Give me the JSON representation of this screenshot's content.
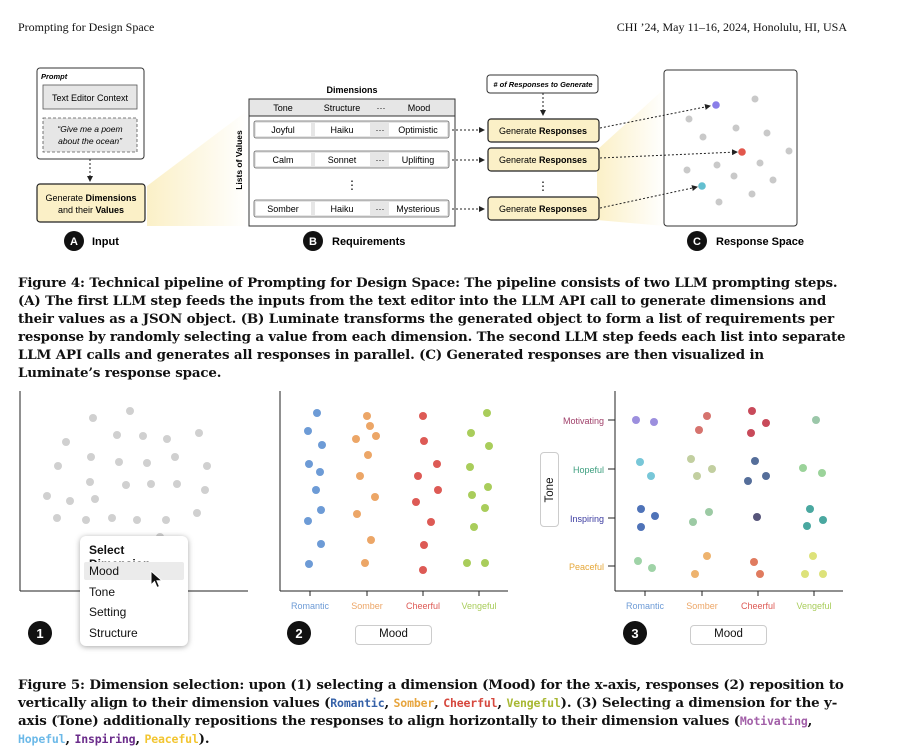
{
  "header": {
    "left": "Prompting for Design Space",
    "right": "CHI ’24, May 11–16, 2024, Honolulu, HI, USA"
  },
  "fig4": {
    "prompt_label": "Prompt",
    "text_editor": "Text Editor Context",
    "quote_line1": "“Give me a poem",
    "quote_line2": "about the ocean”",
    "gen_dim_pre": "Generate ",
    "gen_dim_bold": "Dimensions",
    "gen_dim_line2_pre": "and their ",
    "gen_dim_line2_bold": "Values",
    "dimensions_title": "Dimensions",
    "lists_of_values": "Lists of Values",
    "columns": [
      "Tone",
      "Structure",
      "···",
      "Mood"
    ],
    "rows": [
      [
        "Joyful",
        "Haiku",
        "···",
        "Optimistic"
      ],
      [
        "Calm",
        "Sonnet",
        "···",
        "Uplifting"
      ],
      [
        "Somber",
        "Haiku",
        "···",
        "Mysterious"
      ]
    ],
    "ellipsis": "⋮",
    "num_responses": "# of Responses to Generate",
    "gen_resp_pre": "Generate ",
    "gen_resp_bold": "Responses",
    "label_a": "A",
    "label_a_text": "Input",
    "label_b": "B",
    "label_b_text": "Requirements",
    "label_c": "C",
    "label_c_text": "Response Space",
    "colors": {
      "cream": "#fbf0c7",
      "purple": "#8a7ee8",
      "red": "#e2574c",
      "cyan": "#63bfd0",
      "grey": "#c9c9c9"
    }
  },
  "fig4_caption": "Figure 4: Technical pipeline of Prompting for Design Space: The pipeline consists of two LLM prompting steps. (A) The first LLM step feeds the inputs from the text editor into the LLM API call to generate dimensions and their values as a JSON object. (B) Luminate transforms the generated object to form a list of requirements per response by randomly selecting a value from each dimension. The second LLM step feeds each list into separate LLM API calls and generates all responses in parallel. (C) Generated responses are then visualized in Luminate’s response space.",
  "fig5": {
    "menu": {
      "title": "Select Dimension",
      "items": [
        "Mood",
        "Tone",
        "Setting",
        "Structure"
      ],
      "selected": "Mood"
    },
    "x_values": [
      "Romantic",
      "Somber",
      "Cheerful",
      "Vengeful"
    ],
    "y_values": [
      "Motivating",
      "Hopeful",
      "Inspiring",
      "Peaceful"
    ],
    "x_axis_button": "Mood",
    "y_axis_button": "Tone",
    "step_labels": [
      "1",
      "2",
      "3"
    ],
    "colors": {
      "Romantic": "#6d9bd6",
      "Somber": "#eca667",
      "Cheerful": "#dd5a55",
      "Vengeful": "#a9cd5b",
      "Motivating": "#a0406a",
      "Hopeful": "#3c9e7e",
      "Inspiring": "#3a3aa0",
      "Peaceful": "#e6a83a",
      "grey": "#cfcfcf"
    }
  },
  "fig5_caption": {
    "p1": "Figure 5: Dimension selection: upon (1) selecting a dimension (Mood) for the x-axis, responses (2) reposition to vertically align to their dimension values (",
    "x_words": [
      "Romantic",
      "Somber",
      "Cheerful",
      "Vengeful"
    ],
    "p2": "). (3) Selecting a dimension for the y-axis (Tone) additionally repositions the responses to align horizontally to their dimension values (",
    "y_words": [
      "Motivating",
      "Hopeful",
      "Inspiring",
      "Peaceful"
    ],
    "p3": ").",
    "sep": ", ",
    "x_colors": [
      "#3561a8",
      "#e7a53e",
      "#d6473d",
      "#a8b833"
    ],
    "y_colors": [
      "#a25fa8",
      "#6cb9e8",
      "#6a2b8a",
      "#f2c530"
    ]
  }
}
